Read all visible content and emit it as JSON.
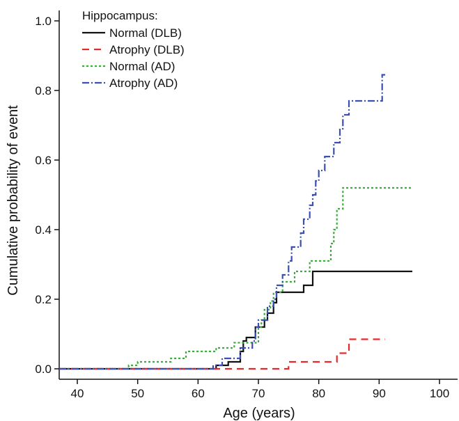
{
  "chart_data": {
    "type": "line",
    "step": true,
    "xlabel": "Age (years)",
    "ylabel": "Cumulative probability of event",
    "xlim": [
      37,
      103
    ],
    "ylim": [
      -0.03,
      1.03
    ],
    "xticks": [
      40,
      50,
      60,
      70,
      80,
      90,
      100
    ],
    "yticks": [
      0.0,
      0.2,
      0.4,
      0.6,
      0.8,
      1.0
    ],
    "ytick_labels": [
      "0.0",
      "0.2",
      "0.4",
      "0.6",
      "0.8",
      "1.0"
    ],
    "grid": false,
    "legend": {
      "title": "Hippocampus:",
      "placement": "top-left"
    },
    "series": [
      {
        "name": "Normal (DLB)",
        "color": "#111111",
        "dash": "",
        "points": [
          [
            37,
            0
          ],
          [
            63,
            0
          ],
          [
            63,
            0.01
          ],
          [
            65,
            0.01
          ],
          [
            65,
            0.02
          ],
          [
            67,
            0.02
          ],
          [
            67,
            0.05
          ],
          [
            67.5,
            0.05
          ],
          [
            67.5,
            0.08
          ],
          [
            68,
            0.08
          ],
          [
            68,
            0.09
          ],
          [
            69.5,
            0.09
          ],
          [
            69.5,
            0.12
          ],
          [
            71,
            0.12
          ],
          [
            71,
            0.14
          ],
          [
            71.5,
            0.14
          ],
          [
            71.5,
            0.16
          ],
          [
            72.5,
            0.16
          ],
          [
            72.5,
            0.19
          ],
          [
            73,
            0.19
          ],
          [
            73,
            0.22
          ],
          [
            77.5,
            0.22
          ],
          [
            77.5,
            0.24
          ],
          [
            79,
            0.24
          ],
          [
            79,
            0.28
          ],
          [
            95.5,
            0.28
          ]
        ]
      },
      {
        "name": "Atrophy (DLB)",
        "color": "#e8292c",
        "dash": "10,7",
        "points": [
          [
            37,
            0
          ],
          [
            75,
            0
          ],
          [
            75,
            0.02
          ],
          [
            83,
            0.02
          ],
          [
            83,
            0.045
          ],
          [
            85,
            0.045
          ],
          [
            85,
            0.085
          ],
          [
            91,
            0.085
          ]
        ]
      },
      {
        "name": "Normal (AD)",
        "color": "#3cab3c",
        "dash": "3,3",
        "points": [
          [
            37,
            0
          ],
          [
            48.5,
            0
          ],
          [
            48.5,
            0.01
          ],
          [
            50,
            0.01
          ],
          [
            50,
            0.02
          ],
          [
            55.5,
            0.02
          ],
          [
            55.5,
            0.03
          ],
          [
            58,
            0.03
          ],
          [
            58,
            0.05
          ],
          [
            63,
            0.05
          ],
          [
            63,
            0.06
          ],
          [
            66,
            0.06
          ],
          [
            66,
            0.075
          ],
          [
            70,
            0.075
          ],
          [
            70,
            0.12
          ],
          [
            70.5,
            0.12
          ],
          [
            70.5,
            0.14
          ],
          [
            71,
            0.14
          ],
          [
            71,
            0.17
          ],
          [
            72,
            0.17
          ],
          [
            72,
            0.195
          ],
          [
            72.5,
            0.195
          ],
          [
            72.5,
            0.22
          ],
          [
            74,
            0.22
          ],
          [
            74,
            0.25
          ],
          [
            76,
            0.25
          ],
          [
            76,
            0.28
          ],
          [
            78.5,
            0.28
          ],
          [
            78.5,
            0.31
          ],
          [
            82,
            0.31
          ],
          [
            82,
            0.36
          ],
          [
            82.5,
            0.36
          ],
          [
            82.5,
            0.4
          ],
          [
            83,
            0.4
          ],
          [
            83,
            0.46
          ],
          [
            84,
            0.46
          ],
          [
            84,
            0.52
          ],
          [
            95.5,
            0.52
          ]
        ]
      },
      {
        "name": "Atrophy (AD)",
        "color": "#3a4fb0",
        "dash": "10,3,2,3",
        "points": [
          [
            37,
            0
          ],
          [
            62.5,
            0
          ],
          [
            62.5,
            0.01
          ],
          [
            64,
            0.01
          ],
          [
            64,
            0.03
          ],
          [
            67,
            0.03
          ],
          [
            67,
            0.06
          ],
          [
            69,
            0.06
          ],
          [
            69,
            0.08
          ],
          [
            69.5,
            0.08
          ],
          [
            69.5,
            0.12
          ],
          [
            70,
            0.12
          ],
          [
            70,
            0.14
          ],
          [
            71.5,
            0.14
          ],
          [
            71.5,
            0.18
          ],
          [
            72.5,
            0.18
          ],
          [
            72.5,
            0.2
          ],
          [
            73,
            0.2
          ],
          [
            73,
            0.24
          ],
          [
            74,
            0.24
          ],
          [
            74,
            0.27
          ],
          [
            75,
            0.27
          ],
          [
            75,
            0.31
          ],
          [
            75.5,
            0.31
          ],
          [
            75.5,
            0.35
          ],
          [
            77,
            0.35
          ],
          [
            77,
            0.39
          ],
          [
            77.5,
            0.39
          ],
          [
            77.5,
            0.43
          ],
          [
            78.5,
            0.43
          ],
          [
            78.5,
            0.47
          ],
          [
            79,
            0.47
          ],
          [
            79,
            0.5
          ],
          [
            79.5,
            0.5
          ],
          [
            79.5,
            0.54
          ],
          [
            80,
            0.54
          ],
          [
            80,
            0.57
          ],
          [
            81,
            0.57
          ],
          [
            81,
            0.61
          ],
          [
            82.5,
            0.61
          ],
          [
            82.5,
            0.65
          ],
          [
            83.5,
            0.65
          ],
          [
            83.5,
            0.69
          ],
          [
            84,
            0.69
          ],
          [
            84,
            0.73
          ],
          [
            85,
            0.73
          ],
          [
            85,
            0.77
          ],
          [
            90.5,
            0.77
          ],
          [
            90.5,
            0.845
          ],
          [
            91,
            0.845
          ]
        ]
      }
    ]
  }
}
